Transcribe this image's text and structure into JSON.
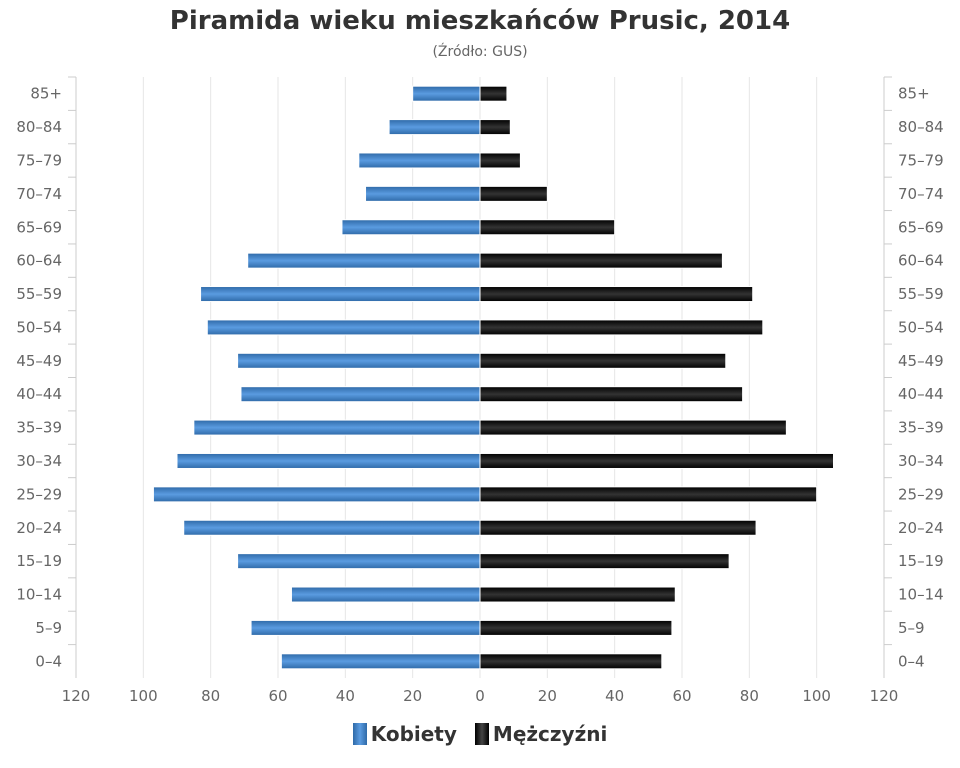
{
  "chart_data": {
    "type": "bar",
    "orientation": "horizontal-population-pyramid",
    "title": "Piramida wieku mieszkańców Prusic, 2014",
    "subtitle": "(Źródło: GUS)",
    "categories": [
      "85+",
      "80-84",
      "75-79",
      "70-74",
      "65-69",
      "60-64",
      "55-59",
      "50-54",
      "45-49",
      "40-44",
      "35-39",
      "30-34",
      "25-29",
      "20-24",
      "15-19",
      "10-14",
      "5-9",
      "0-4"
    ],
    "series": [
      {
        "name": "Kobiety",
        "side": "left",
        "color": "#3d7fc4",
        "values": [
          20,
          27,
          36,
          34,
          41,
          69,
          83,
          81,
          72,
          71,
          85,
          90,
          97,
          88,
          72,
          56,
          68,
          59
        ]
      },
      {
        "name": "Mężczyźni",
        "side": "right",
        "color": "#111111",
        "values": [
          8,
          9,
          12,
          20,
          40,
          72,
          81,
          84,
          73,
          78,
          91,
          105,
          100,
          82,
          74,
          58,
          57,
          54
        ]
      }
    ],
    "xlim": [
      -120,
      120
    ],
    "xticks": [
      "120",
      "100",
      "80",
      "60",
      "40",
      "20",
      "0",
      "20",
      "40",
      "60",
      "80",
      "100",
      "120"
    ],
    "grid": true,
    "legend": "bottom"
  }
}
